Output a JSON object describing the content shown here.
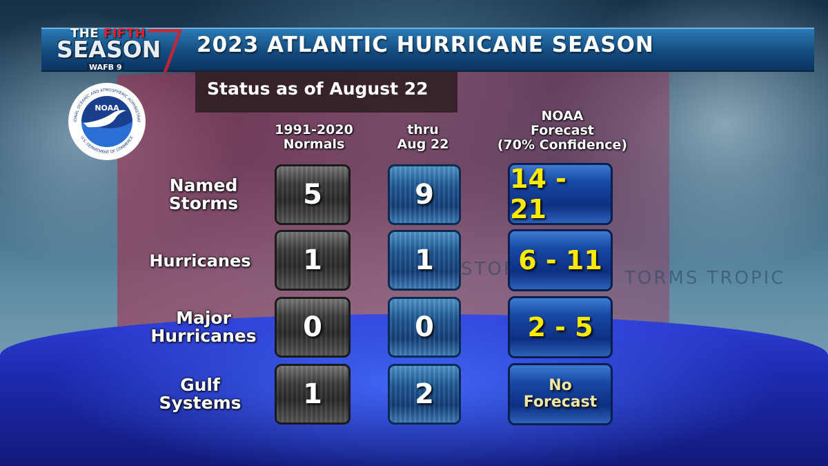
{
  "header": {
    "brand_line1a": "THE",
    "brand_line1b": "FIFTH",
    "brand_line2": "SEASON",
    "brand_line3": "WAFB 9",
    "title": "2023 ATLANTIC HURRICANE SEASON",
    "status": "Status as of August 22"
  },
  "noaa_logo": {
    "ring_top": "NATIONAL OCEANIC AND ATMOSPHERIC ADMINISTRATION",
    "ring_bottom": "U.S. DEPARTMENT OF COMMERCE",
    "center": "NOAA"
  },
  "columns": [
    {
      "lines": [
        "1991-2020",
        "Normals"
      ]
    },
    {
      "lines": [
        "thru",
        "Aug 22"
      ]
    },
    {
      "lines": [
        "NOAA",
        "Forecast",
        "(70% Confidence)"
      ]
    }
  ],
  "rows": [
    {
      "label": [
        "Named",
        "Storms"
      ],
      "normal": "5",
      "current": "9",
      "forecast": [
        "14 - 21"
      ]
    },
    {
      "label": [
        "Hurricanes"
      ],
      "normal": "1",
      "current": "1",
      "forecast": [
        "6 - 11"
      ]
    },
    {
      "label": [
        "Major",
        "Hurricanes"
      ],
      "normal": "0",
      "current": "0",
      "forecast": [
        "2 - 5"
      ]
    },
    {
      "label": [
        "Gulf",
        "Systems"
      ],
      "normal": "1",
      "current": "2",
      "forecast": [
        "No",
        "Forecast"
      ]
    }
  ],
  "background_text": [
    "STORMS",
    "TORMS  TROPIC"
  ],
  "colors": {
    "title_bar": "#134b7e",
    "forecast_text": "#ffea00",
    "gray_cell": "#3d3d3d",
    "blue_cell": "#1e5a95",
    "forecast_cell": "#1748a3"
  }
}
